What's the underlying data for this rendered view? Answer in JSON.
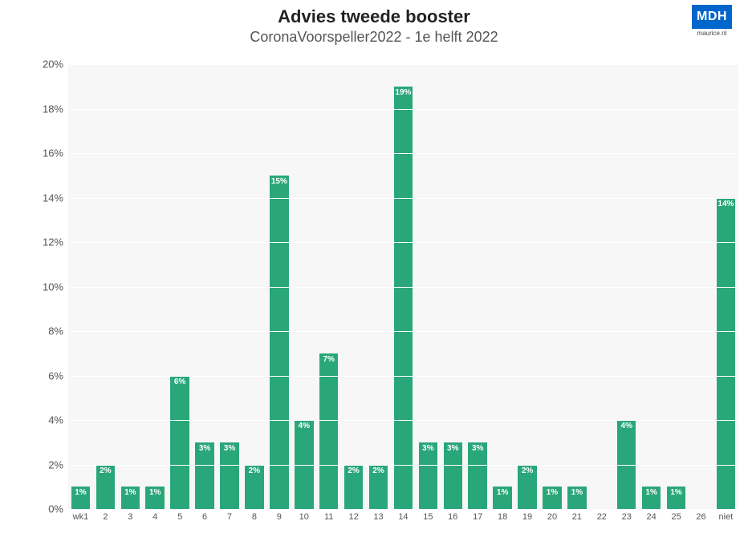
{
  "header": {
    "title": "Advies tweede booster",
    "subtitle": "CoronaVoorspeller2022 - 1e helft 2022"
  },
  "logo": {
    "text": "MDH",
    "sub": "maurice.nl",
    "bg": "#0066cc",
    "fg": "#ffffff"
  },
  "chart": {
    "type": "bar",
    "bar_color": "#2aa77a",
    "value_label_color": "#ffffff",
    "background_color": "#f7f7f7",
    "grid_color": "#ffffff",
    "axis_label_color": "#555555",
    "ylim": [
      0,
      20
    ],
    "ytick_step": 2,
    "ytick_suffix": "%",
    "bar_width": 0.76,
    "value_label_fontsize": 10,
    "axis_fontsize": 13,
    "categories": [
      "wk1",
      "2",
      "3",
      "4",
      "5",
      "6",
      "7",
      "8",
      "9",
      "10",
      "11",
      "12",
      "13",
      "14",
      "15",
      "16",
      "17",
      "18",
      "19",
      "20",
      "21",
      "22",
      "23",
      "24",
      "25",
      "26",
      "niet"
    ],
    "values": [
      1,
      2,
      1,
      1,
      6,
      3,
      3,
      2,
      15,
      4,
      7,
      2,
      2,
      19,
      3,
      3,
      3,
      1,
      2,
      1,
      1,
      0,
      4,
      1,
      1,
      0,
      14
    ],
    "value_labels": [
      "1%",
      "2%",
      "1%",
      "1%",
      "6%",
      "3%",
      "3%",
      "2%",
      "15%",
      "4%",
      "7%",
      "2%",
      "2%",
      "19%",
      "3%",
      "3%",
      "3%",
      "1%",
      "2%",
      "1%",
      "1%",
      "",
      "4%",
      "1%",
      "1%",
      "",
      "14%"
    ]
  }
}
